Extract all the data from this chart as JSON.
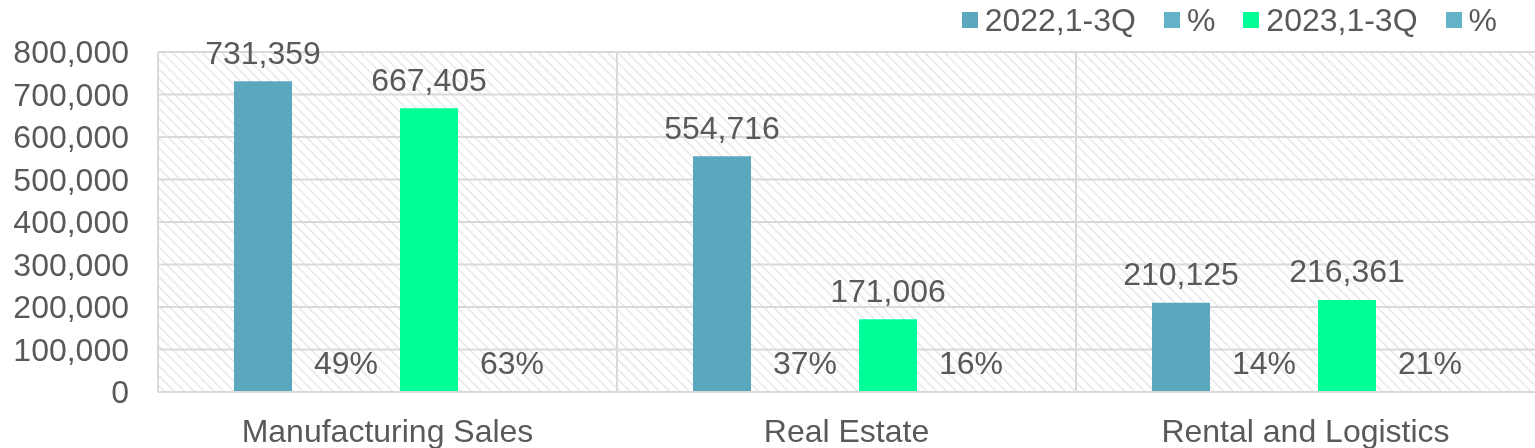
{
  "chart_data": {
    "type": "bar",
    "categories": [
      "Manufacturing Sales",
      "Real Estate",
      "Rental and Logistics"
    ],
    "series": [
      {
        "name": "2022,1-3Q",
        "color": "#5aa7be",
        "values": [
          731359,
          554716,
          210125
        ],
        "value_labels": [
          "731,359",
          "554,716",
          "210,125"
        ]
      },
      {
        "name": "%",
        "color": "#64b2c8",
        "values": [
          49,
          37,
          14
        ],
        "value_labels": [
          "49%",
          "37%",
          "14%"
        ]
      },
      {
        "name": "2023,1-3Q",
        "color": "#00fe98",
        "values": [
          667405,
          171006,
          216361
        ],
        "value_labels": [
          "667,405",
          "171,006",
          "216,361"
        ]
      },
      {
        "name": "%",
        "color": "#64b2c8",
        "values": [
          63,
          16,
          21
        ],
        "value_labels": [
          "63%",
          "16%",
          "21%"
        ]
      }
    ],
    "ylim": [
      0,
      800000
    ],
    "yticks": [
      0,
      {
        "value": 100000,
        "label": "100,000"
      },
      {
        "value": 200000,
        "label": "200,000"
      },
      {
        "value": 300000,
        "label": "300,000"
      },
      {
        "value": 400000,
        "label": "400,000"
      },
      {
        "value": 500000,
        "label": "500,000"
      },
      {
        "value": 600000,
        "label": "600,000"
      },
      {
        "value": 700000,
        "label": "700,000"
      },
      {
        "value": 800000,
        "label": "800,000"
      }
    ],
    "grid": true,
    "legend": "top right"
  }
}
